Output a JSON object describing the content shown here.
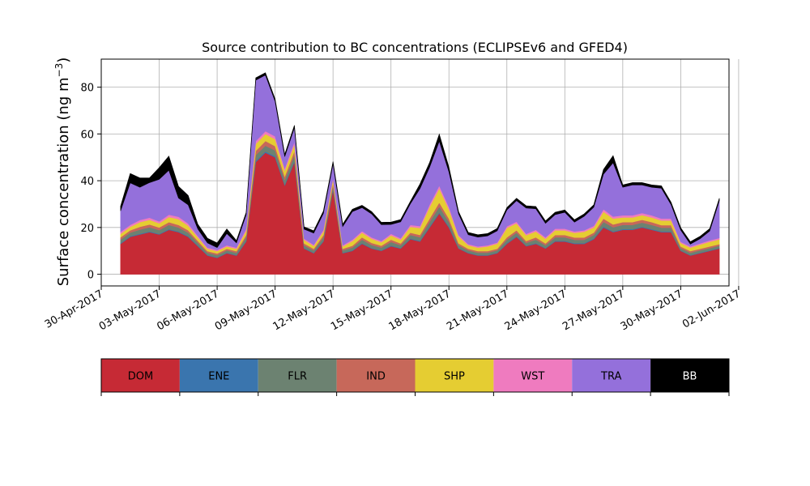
{
  "chart_data": {
    "type": "area",
    "stacked": true,
    "title": "Source contribution to BC concentrations (ECLIPSEv6 and GFED4)",
    "xlabel": "",
    "ylabel": "Surface concentration (ng m⁻³)",
    "ylabel_main": "Surface concentration (ng m",
    "ylabel_sup": "−3",
    "ylabel_close": ")",
    "x_unit": "day",
    "x_start_date": "2017-05-01",
    "x_step_days": 0.5,
    "x": [
      "2017-05-01",
      "2017-05-01 12:00",
      "2017-05-02",
      "2017-05-02 12:00",
      "2017-05-03",
      "2017-05-03 12:00",
      "2017-05-04",
      "2017-05-04 12:00",
      "2017-05-05",
      "2017-05-05 12:00",
      "2017-05-06",
      "2017-05-06 12:00",
      "2017-05-07",
      "2017-05-07 12:00",
      "2017-05-08",
      "2017-05-08 12:00",
      "2017-05-09",
      "2017-05-09 12:00",
      "2017-05-10",
      "2017-05-10 12:00",
      "2017-05-11",
      "2017-05-11 12:00",
      "2017-05-12",
      "2017-05-12 12:00",
      "2017-05-13",
      "2017-05-13 12:00",
      "2017-05-14",
      "2017-05-14 12:00",
      "2017-05-15",
      "2017-05-15 12:00",
      "2017-05-16",
      "2017-05-16 12:00",
      "2017-05-17",
      "2017-05-17 12:00",
      "2017-05-18",
      "2017-05-18 12:00",
      "2017-05-19",
      "2017-05-19 12:00",
      "2017-05-20",
      "2017-05-20 12:00",
      "2017-05-21",
      "2017-05-21 12:00",
      "2017-05-22",
      "2017-05-22 12:00",
      "2017-05-23",
      "2017-05-23 12:00",
      "2017-05-24",
      "2017-05-24 12:00",
      "2017-05-25",
      "2017-05-25 12:00",
      "2017-05-26",
      "2017-05-26 12:00",
      "2017-05-27",
      "2017-05-27 12:00",
      "2017-05-28",
      "2017-05-28 12:00",
      "2017-05-29",
      "2017-05-29 12:00",
      "2017-05-30",
      "2017-05-30 12:00",
      "2017-05-31",
      "2017-05-31 12:00",
      "2017-06-01"
    ],
    "xlim": [
      "2017-04-30",
      "2017-06-01 12:00"
    ],
    "ylim": [
      -5,
      92
    ],
    "yticks": [
      0,
      20,
      40,
      60,
      80
    ],
    "ytick_labels": [
      "0",
      "20",
      "40",
      "60",
      "80"
    ],
    "xticks": [
      "2017-04-30",
      "2017-05-03",
      "2017-05-06",
      "2017-05-09",
      "2017-05-12",
      "2017-05-15",
      "2017-05-18",
      "2017-05-21",
      "2017-05-24",
      "2017-05-27",
      "2017-05-30",
      "2017-06-02"
    ],
    "xtick_labels": [
      "30-Apr-2017",
      "03-May-2017",
      "06-May-2017",
      "09-May-2017",
      "12-May-2017",
      "15-May-2017",
      "18-May-2017",
      "21-May-2017",
      "24-May-2017",
      "27-May-2017",
      "30-May-2017",
      "02-Jun-2017"
    ],
    "grid": true,
    "legend_position": "bottom",
    "series": [
      {
        "name": "DOM",
        "color": "#c62a35",
        "values": [
          13,
          16,
          17,
          18,
          17,
          19,
          18,
          16,
          12,
          8,
          7,
          9,
          8,
          14,
          48,
          52,
          50,
          38,
          48,
          11,
          9,
          14,
          36,
          9,
          10,
          13,
          11,
          10,
          12,
          11,
          15,
          14,
          20,
          26,
          20,
          11,
          9,
          8,
          8,
          9,
          13,
          16,
          12,
          13,
          11,
          14,
          14,
          13,
          13,
          15,
          20,
          18,
          19,
          19,
          20,
          19,
          18,
          18,
          10,
          8,
          9,
          10,
          11
        ]
      },
      {
        "name": "ENE",
        "color": "#3a75ae",
        "values": [
          0.3,
          0.3,
          0.3,
          0.3,
          0.3,
          0.3,
          0.3,
          0.3,
          0.3,
          0.2,
          0.2,
          0.2,
          0.2,
          0.3,
          0.5,
          0.5,
          0.5,
          0.4,
          0.5,
          0.2,
          0.2,
          0.3,
          0.4,
          0.2,
          0.2,
          0.3,
          0.2,
          0.2,
          0.3,
          0.2,
          0.3,
          0.3,
          0.4,
          0.4,
          0.4,
          0.2,
          0.2,
          0.2,
          0.2,
          0.2,
          0.3,
          0.3,
          0.2,
          0.3,
          0.2,
          0.3,
          0.3,
          0.3,
          0.3,
          0.3,
          0.4,
          0.3,
          0.3,
          0.3,
          0.3,
          0.3,
          0.3,
          0.3,
          0.2,
          0.2,
          0.2,
          0.2,
          0.2
        ]
      },
      {
        "name": "FLR",
        "color": "#6c8271",
        "values": [
          1.5,
          1.5,
          1.8,
          1.8,
          1.6,
          1.8,
          1.7,
          1.5,
          1.2,
          1,
          1,
          1,
          1,
          1.5,
          2.5,
          2.5,
          2.5,
          2,
          2.5,
          1.2,
          1,
          1.5,
          1.5,
          1,
          1.2,
          1.5,
          1.3,
          1.2,
          1.5,
          1.2,
          1.5,
          1.5,
          2,
          2.5,
          2,
          1.2,
          1,
          1,
          1,
          1,
          1.5,
          1.5,
          1.2,
          1.5,
          1.2,
          1.5,
          1.5,
          1.4,
          1.4,
          1.5,
          2,
          1.8,
          1.8,
          1.8,
          1.8,
          1.8,
          1.6,
          1.6,
          1,
          1,
          1,
          1,
          1
        ]
      },
      {
        "name": "IND",
        "color": "#c7685a",
        "values": [
          1,
          1,
          1.2,
          1.2,
          1.1,
          1.2,
          1.1,
          1,
          0.8,
          0.7,
          0.7,
          0.7,
          0.7,
          1,
          1.8,
          2,
          1.8,
          1.4,
          1.8,
          0.8,
          0.7,
          1,
          1.2,
          0.7,
          0.8,
          1,
          0.9,
          0.8,
          1,
          0.8,
          1,
          1,
          1.4,
          1.8,
          1.4,
          0.8,
          0.7,
          0.7,
          0.7,
          0.7,
          1,
          1,
          0.8,
          1,
          0.8,
          1,
          1,
          1,
          1,
          1,
          1.4,
          1.2,
          1.2,
          1.2,
          1.2,
          1.2,
          1.1,
          1.1,
          0.7,
          0.7,
          0.7,
          0.7,
          0.7
        ]
      },
      {
        "name": "SHP",
        "color": "#e5cd32",
        "values": [
          1.5,
          1.5,
          2,
          2,
          1.8,
          2.2,
          2.5,
          2,
          1.5,
          1,
          1,
          1,
          1,
          1.8,
          3,
          3,
          3,
          2.5,
          2.8,
          1.5,
          1.2,
          1.5,
          1.5,
          1,
          2,
          2,
          1.8,
          1.5,
          1.8,
          1.6,
          2.5,
          3,
          5,
          6,
          4,
          3,
          1.5,
          1.5,
          2,
          2.2,
          4,
          3,
          2.5,
          2.5,
          2,
          2,
          2,
          2,
          2.5,
          2.2,
          3,
          2.5,
          2,
          2,
          2,
          2,
          2,
          2,
          1.5,
          1.5,
          1.8,
          2,
          2
        ]
      },
      {
        "name": "WST",
        "color": "#ef7bbf",
        "values": [
          0.8,
          0.8,
          0.9,
          0.9,
          0.8,
          1,
          1,
          0.9,
          0.6,
          0.5,
          0.5,
          0.5,
          0.5,
          0.8,
          1.2,
          1.2,
          1.2,
          1,
          1.1,
          0.6,
          0.5,
          0.7,
          0.6,
          0.5,
          0.6,
          0.7,
          0.6,
          0.5,
          0.7,
          0.6,
          0.8,
          0.8,
          1,
          1.2,
          1,
          0.6,
          0.5,
          0.5,
          0.5,
          0.5,
          0.7,
          0.7,
          0.6,
          0.7,
          0.6,
          0.7,
          0.7,
          0.6,
          0.6,
          0.7,
          1,
          0.9,
          0.9,
          0.9,
          0.9,
          0.9,
          0.8,
          0.8,
          0.5,
          0.5,
          0.5,
          0.6,
          0.6
        ]
      },
      {
        "name": "TRA",
        "color": "#9470db",
        "values": [
          9,
          18,
          14,
          15,
          18,
          19,
          8,
          8,
          3,
          2,
          1,
          5,
          2,
          6,
          26,
          24,
          15,
          5,
          6,
          4,
          5,
          7,
          6,
          8,
          12,
          10,
          10,
          7,
          4,
          7,
          9,
          16,
          16,
          19,
          15,
          9,
          4,
          4,
          4,
          5,
          7,
          9,
          11,
          9,
          6,
          6,
          7,
          4,
          6,
          8,
          15,
          23,
          12,
          13,
          12,
          12,
          13,
          6,
          5,
          1,
          2,
          4,
          16
        ]
      },
      {
        "name": "BB",
        "color": "#000000",
        "values": [
          2,
          4,
          4,
          2,
          5,
          6,
          5,
          4,
          2,
          2,
          2,
          2,
          1,
          1,
          1,
          1,
          1,
          1,
          1,
          1,
          1,
          1,
          1,
          1,
          1,
          1,
          1,
          1,
          1,
          1,
          1,
          2,
          2,
          3,
          2,
          1,
          1,
          1,
          1,
          1,
          1,
          1,
          1,
          1,
          1,
          1,
          1,
          1,
          1,
          1,
          2,
          3,
          1,
          1,
          1,
          1,
          1,
          1,
          1,
          1,
          1,
          1,
          1
        ]
      }
    ]
  }
}
